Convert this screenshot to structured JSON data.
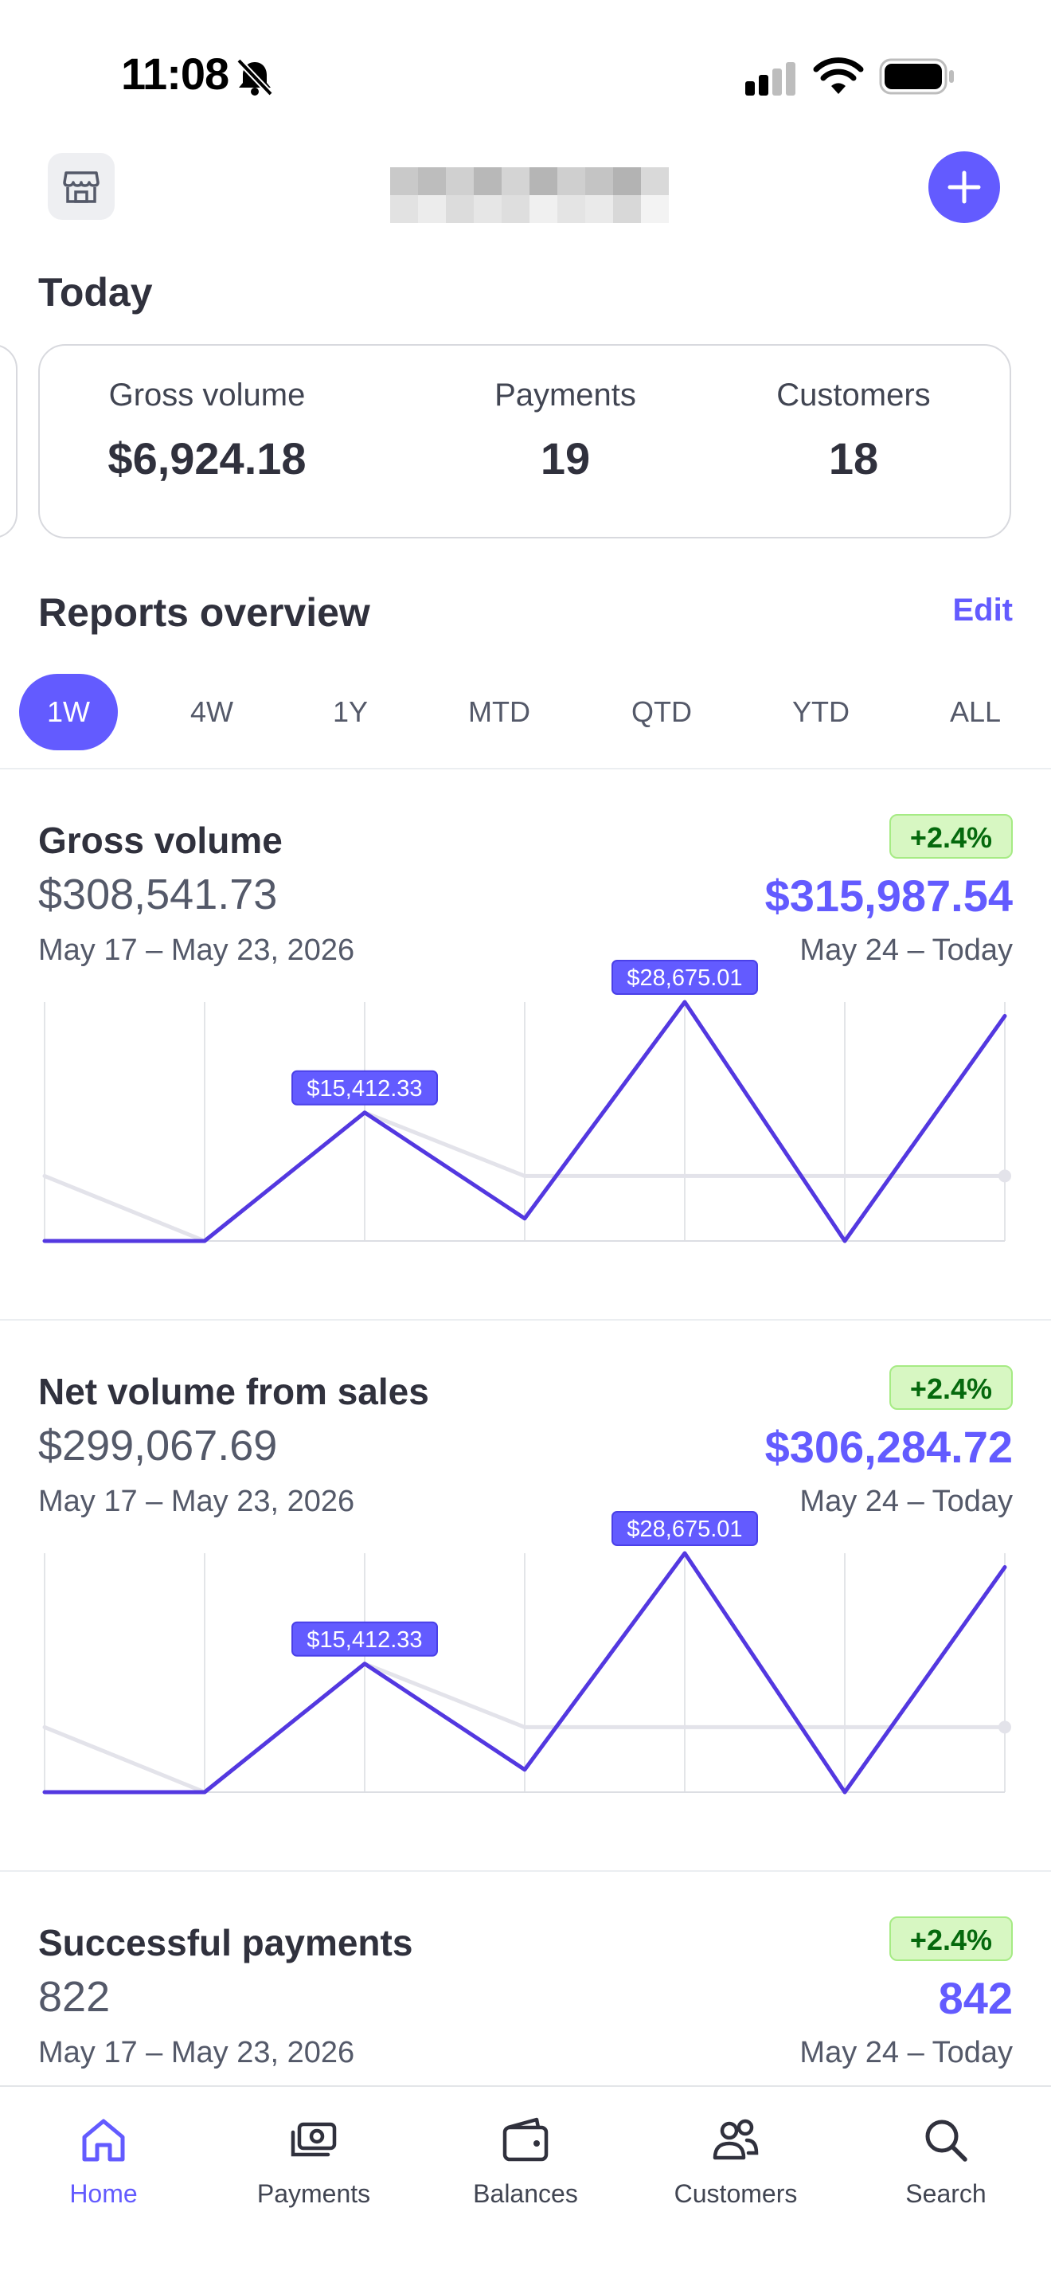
{
  "status_bar": {
    "time": "11:08"
  },
  "header": {
    "store_icon": "storefront-icon",
    "add_icon": "plus-icon"
  },
  "today": {
    "title": "Today",
    "metrics": [
      {
        "label": "Gross volume",
        "value": "$6,924.18"
      },
      {
        "label": "Payments",
        "value": "19"
      },
      {
        "label": "Customers",
        "value": "18"
      }
    ]
  },
  "reports": {
    "title": "Reports overview",
    "edit_label": "Edit",
    "ranges": [
      "1W",
      "4W",
      "1Y",
      "MTD",
      "QTD",
      "YTD",
      "ALL"
    ],
    "selected_range": "1W"
  },
  "cards": [
    {
      "title": "Gross volume",
      "change": "+2.4%",
      "previous_value": "$308,541.73",
      "previous_range": "May 17 – May 23, 2026",
      "current_value": "$315,987.54",
      "current_range": "May 24 – Today"
    },
    {
      "title": "Net volume from sales",
      "change": "+2.4%",
      "previous_value": "$299,067.69",
      "previous_range": "May 17 – May 23, 2026",
      "current_value": "$306,284.72",
      "current_range": "May 24 – Today"
    },
    {
      "title": "Successful payments",
      "change": "+2.4%",
      "previous_value": "822",
      "previous_range": "May 17 – May 23, 2026",
      "current_value": "842",
      "current_range": "May 24 – Today"
    }
  ],
  "chart_data": [
    {
      "type": "line",
      "ylim": [
        0,
        28675.01
      ],
      "series": [
        {
          "values": [
            0,
            0,
            15412.33,
            2700,
            28675.01,
            0,
            27000
          ],
          "color": "#5338e0"
        },
        {
          "values": [
            7800,
            0,
            15412.33,
            7800,
            7800,
            7800,
            7800
          ],
          "color": "#e3e3ea"
        }
      ],
      "annotations": [
        {
          "index": 2,
          "label": "$15,412.33"
        },
        {
          "index": 4,
          "label": "$28,675.01"
        }
      ]
    },
    {
      "type": "line",
      "ylim": [
        0,
        28675.01
      ],
      "series": [
        {
          "values": [
            0,
            0,
            15412.33,
            2700,
            28675.01,
            0,
            27000
          ],
          "color": "#5338e0"
        },
        {
          "values": [
            7800,
            0,
            15412.33,
            7800,
            7800,
            7800,
            7800
          ],
          "color": "#e3e3ea"
        }
      ],
      "annotations": [
        {
          "index": 2,
          "label": "$15,412.33"
        },
        {
          "index": 4,
          "label": "$28,675.01"
        }
      ]
    }
  ],
  "nav": [
    {
      "label": "Home",
      "icon": "home-icon",
      "active": true
    },
    {
      "label": "Payments",
      "icon": "payments-icon",
      "active": false
    },
    {
      "label": "Balances",
      "icon": "wallet-icon",
      "active": false
    },
    {
      "label": "Customers",
      "icon": "customers-icon",
      "active": false
    },
    {
      "label": "Search",
      "icon": "search-icon",
      "active": false
    }
  ],
  "colors": {
    "accent": "#635bff",
    "line": "#5338e0",
    "positive_bg": "#d7f7c2",
    "positive_text": "#05690d"
  }
}
